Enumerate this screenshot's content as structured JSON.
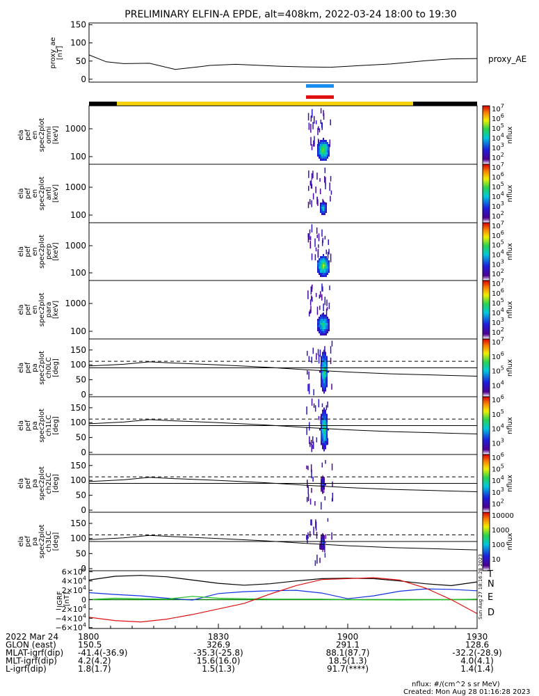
{
  "title": "PRELIMINARY ELFIN-A EPDE, alt=408km, 2022-03-24 18:00 to 19:30",
  "colors": {
    "ae_line": "#000000",
    "marker_blue": "#1a8cf0",
    "marker_red": "#e01010",
    "status_yellow": "#f5d20a",
    "status_black": "#000000",
    "grf_T": "#000000",
    "grf_N": "#1030e0",
    "grf_E": "#20c020",
    "grf_D": "#e01010",
    "zero_line": "#0a7a0a"
  },
  "chart_data": [
    {
      "id": "proxy_ae",
      "type": "line",
      "ylabel": "proxy_ae [nT]",
      "legend": "proxy_AE",
      "ylim": [
        -8,
        155
      ],
      "yticks": [
        "150",
        "100",
        "50",
        "0"
      ],
      "x_minutes": [
        0,
        4,
        8,
        14,
        20,
        26,
        28,
        34,
        38,
        44,
        50,
        56,
        62,
        70,
        78,
        84,
        90
      ],
      "values": [
        67,
        48,
        43,
        44,
        27,
        35,
        38,
        41,
        39,
        36,
        34,
        33,
        37,
        42,
        51,
        56,
        57
      ]
    },
    {
      "id": "spectrograms_energy",
      "type": "heatmap",
      "panels": [
        {
          "ylabel": [
            "ela",
            "pef",
            "en",
            "spec2plot",
            "omni",
            "[keV]"
          ],
          "yticks": [
            "1000",
            "100"
          ],
          "cbar_ticks": [
            "10^7",
            "10^6",
            "10^5",
            "10^4",
            "10^3",
            "10^2"
          ],
          "cbar_label": "nflux"
        },
        {
          "ylabel": [
            "ela",
            "pef",
            "en",
            "spec2plot",
            "anti",
            "[keV]"
          ],
          "yticks": [
            "1000",
            "100"
          ],
          "cbar_ticks": [
            "10^7",
            "10^6",
            "10^5",
            "10^4",
            "10^3",
            "10^2"
          ],
          "cbar_label": "nflux"
        },
        {
          "ylabel": [
            "ela",
            "pef",
            "en",
            "spec2plot",
            "perp",
            "[keV]"
          ],
          "yticks": [
            "1000",
            "100"
          ],
          "cbar_ticks": [
            "10^7",
            "10^6",
            "10^5",
            "10^4",
            "10^3",
            "10^2"
          ],
          "cbar_label": "nflux"
        },
        {
          "ylabel": [
            "ela",
            "pef",
            "en",
            "spec2plot",
            "para",
            "[keV]"
          ],
          "yticks": [
            "1000",
            "100"
          ],
          "cbar_ticks": [
            "10^7",
            "10^6",
            "10^5",
            "10^4",
            "10^3",
            "10^2"
          ],
          "cbar_label": "nflux"
        }
      ]
    },
    {
      "id": "spectrograms_pitch",
      "type": "heatmap",
      "ylim": [
        0,
        180
      ],
      "panels": [
        {
          "ylabel": [
            "ela",
            "pef",
            "pa",
            "spec2plot",
            "ch0LC",
            "[deg]"
          ],
          "yticks": [
            "150",
            "100",
            "50",
            "0"
          ],
          "cbar_ticks": [
            "10^7",
            "10^6",
            "10^5",
            "10^4"
          ],
          "cbar_label": "nflux"
        },
        {
          "ylabel": [
            "ela",
            "pef",
            "pa",
            "spec2plot",
            "ch1LC",
            "[deg]"
          ],
          "yticks": [
            "150",
            "100",
            "50",
            "0"
          ],
          "cbar_ticks": [
            "10^6",
            "10^5",
            "10^4",
            "10^3"
          ],
          "cbar_label": "nflux"
        },
        {
          "ylabel": [
            "ela",
            "pef",
            "pa",
            "spec2plot",
            "ch2LC",
            "[deg]"
          ],
          "yticks": [
            "150",
            "100",
            "50",
            "0"
          ],
          "cbar_ticks": [
            "10^6",
            "10^5",
            "10^4",
            "10^3",
            "10^2"
          ],
          "cbar_label": "nflux"
        },
        {
          "ylabel": [
            "ela",
            "pef",
            "pa",
            "spec2plot",
            "ch3LC",
            "[deg]"
          ],
          "yticks": [
            "150",
            "100",
            "50",
            "0"
          ],
          "cbar_ticks": [
            "10000",
            "1000",
            "100",
            "10"
          ],
          "cbar_label": "nflux"
        }
      ]
    },
    {
      "id": "igrf",
      "type": "line",
      "ylabel": "IGRF [nT]",
      "ylim": [
        -62000,
        62000
      ],
      "yticks": [
        "6×10^4",
        "4×10^4",
        "2×10^4",
        "0",
        "−2×10^4",
        "−4×10^4",
        "−6×10^4"
      ],
      "x_minutes": [
        0,
        6,
        12,
        18,
        24,
        30,
        36,
        42,
        48,
        54,
        60,
        66,
        72,
        78,
        84,
        90
      ],
      "series": [
        {
          "name": "T",
          "values": [
            42000,
            50000,
            52000,
            49000,
            42000,
            35000,
            31000,
            34000,
            40000,
            45000,
            46000,
            45000,
            40000,
            34000,
            30000,
            38000
          ]
        },
        {
          "name": "N",
          "values": [
            15000,
            11000,
            8000,
            3000,
            -1000,
            13000,
            17000,
            19000,
            20000,
            14000,
            2000,
            8000,
            18000,
            23000,
            22000,
            19000
          ]
        },
        {
          "name": "E",
          "values": [
            0,
            3000,
            2000,
            1000,
            7000,
            3000,
            2000,
            1000,
            1000,
            1000,
            0,
            -500,
            -800,
            -400,
            0,
            1000
          ]
        },
        {
          "name": "D",
          "values": [
            -38000,
            -45000,
            -48000,
            -42000,
            -32000,
            -20000,
            -8000,
            12000,
            30000,
            43000,
            45000,
            47000,
            42000,
            25000,
            0,
            -30000
          ]
        }
      ],
      "side_text": "Sun Aug 27 18:16:28 2023"
    }
  ],
  "xaxis": {
    "tick_labels": [
      "1800",
      "1830",
      "1900",
      "1930"
    ],
    "rows": [
      {
        "label": "2022 Mar 24",
        "values": [
          "1800",
          "1830",
          "1900",
          "1930"
        ]
      },
      {
        "label": "GLON (east)",
        "values": [
          "150.5",
          "326.9",
          "291.1",
          "128.6"
        ]
      },
      {
        "label": "MLAT-igrf(dip)",
        "values": [
          "-41.4(-36.9)",
          "-35.3(-25.8)",
          "88.1(87.7)",
          "-32.2(-28.9)"
        ]
      },
      {
        "label": "MLT-igrf(dip)",
        "values": [
          "4.2(4.2)",
          "15.6(16.0)",
          "18.5(1.3)",
          "4.0(4.1)"
        ]
      },
      {
        "label": "L-igrf(dip)",
        "values": [
          "1.8(1.7)",
          "1.5(1.3)",
          "91.7(****)",
          "1.4(1.4)"
        ]
      }
    ]
  },
  "footer": {
    "units": "nflux: #/(cm^2 s sr MeV)",
    "created": "Created: Mon Aug 28 01:16:28 2023"
  }
}
